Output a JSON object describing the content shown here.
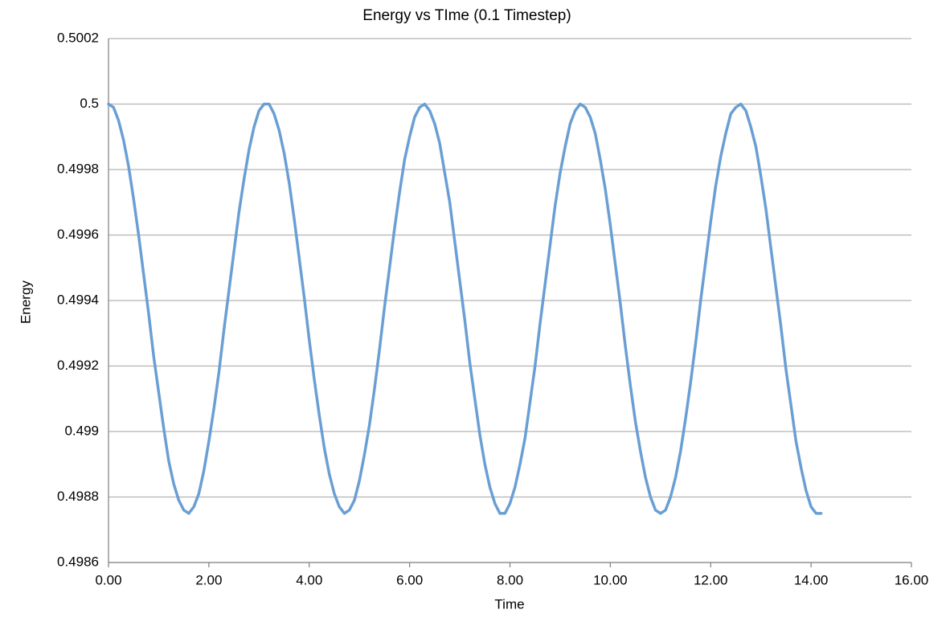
{
  "chart_data": {
    "type": "line",
    "title": "Energy vs TIme (0.1 Timestep)",
    "xlabel": "Time",
    "ylabel": "Energy",
    "x": [
      0,
      0.1,
      0.2,
      0.3,
      0.4,
      0.5,
      0.6,
      0.7,
      0.8,
      0.9,
      1,
      1.1,
      1.2,
      1.3,
      1.4,
      1.5,
      1.6,
      1.7,
      1.8,
      1.9,
      2,
      2.1,
      2.2,
      2.3,
      2.4,
      2.5,
      2.6,
      2.7,
      2.8,
      2.9,
      3,
      3.1,
      3.2,
      3.3,
      3.4,
      3.5,
      3.6,
      3.7,
      3.8,
      3.9,
      4,
      4.1,
      4.2,
      4.3,
      4.4,
      4.5,
      4.6,
      4.7,
      4.8,
      4.9,
      5,
      5.1,
      5.2,
      5.3,
      5.4,
      5.5,
      5.6,
      5.7,
      5.8,
      5.9,
      6,
      6.1,
      6.2,
      6.3,
      6.4,
      6.5,
      6.6,
      6.7,
      6.8,
      6.9,
      7,
      7.1,
      7.2,
      7.3,
      7.4,
      7.5,
      7.6,
      7.7,
      7.8,
      7.9,
      8,
      8.1,
      8.2,
      8.3,
      8.4,
      8.5,
      8.6,
      8.7,
      8.8,
      8.9,
      9,
      9.1,
      9.2,
      9.3,
      9.4,
      9.5,
      9.6,
      9.7,
      9.8,
      9.9,
      10,
      10.1,
      10.2,
      10.3,
      10.4,
      10.5,
      10.6,
      10.7,
      10.8,
      10.9,
      11,
      11.1,
      11.2,
      11.3,
      11.4,
      11.5,
      11.6,
      11.7,
      11.8,
      11.9,
      12,
      12.1,
      12.2,
      12.3,
      12.4,
      12.5,
      12.6,
      12.7,
      12.8,
      12.9,
      13,
      13.1,
      13.2,
      13.3,
      13.4,
      13.5,
      13.6,
      13.7,
      13.8,
      13.9,
      14,
      14.1,
      14.2
    ],
    "series": [
      {
        "name": "Energy",
        "color": "#6a9fd4",
        "values": [
          0.5,
          0.49999,
          0.49995,
          0.49989,
          0.49981,
          0.49971,
          0.4996,
          0.49948,
          0.49936,
          0.49923,
          0.49912,
          0.49901,
          0.49891,
          0.49884,
          0.49879,
          0.49876,
          0.49875,
          0.49877,
          0.49881,
          0.49888,
          0.49897,
          0.49907,
          0.49918,
          0.49931,
          0.49943,
          0.49955,
          0.49967,
          0.49977,
          0.49986,
          0.49993,
          0.49998,
          0.5,
          0.5,
          0.49997,
          0.49992,
          0.49985,
          0.49976,
          0.49965,
          0.49953,
          0.49941,
          0.49928,
          0.49916,
          0.49905,
          0.49895,
          0.49887,
          0.49881,
          0.49877,
          0.49875,
          0.49876,
          0.49879,
          0.49885,
          0.49893,
          0.49902,
          0.49913,
          0.49925,
          0.49938,
          0.4995,
          0.49962,
          0.49973,
          0.49983,
          0.4999,
          0.49996,
          0.49999,
          0.5,
          0.49998,
          0.49994,
          0.49988,
          0.49979,
          0.4997,
          0.49958,
          0.49946,
          0.49934,
          0.49921,
          0.4991,
          0.49899,
          0.4989,
          0.49883,
          0.49878,
          0.49875,
          0.49875,
          0.49878,
          0.49883,
          0.4989,
          0.49898,
          0.49909,
          0.4992,
          0.49933,
          0.49945,
          0.49957,
          0.49969,
          0.49979,
          0.49987,
          0.49994,
          0.49998,
          0.5,
          0.49999,
          0.49996,
          0.49991,
          0.49983,
          0.49974,
          0.49963,
          0.49951,
          0.49939,
          0.49926,
          0.49914,
          0.49903,
          0.49894,
          0.49886,
          0.4988,
          0.49876,
          0.49875,
          0.49876,
          0.4988,
          0.49886,
          0.49894,
          0.49904,
          0.49915,
          0.49927,
          0.4994,
          0.49952,
          0.49964,
          0.49975,
          0.49984,
          0.49991,
          0.49997,
          0.49999,
          0.5,
          0.49998,
          0.49993,
          0.49987,
          0.49978,
          0.49968,
          0.49956,
          0.49944,
          0.49932,
          0.49919,
          0.49908,
          0.49897,
          0.49889,
          0.49882,
          0.49877,
          0.49875,
          0.49875
        ]
      }
    ],
    "xlim": [
      0,
      16
    ],
    "xticks": [
      {
        "value": 0,
        "label": "0.00"
      },
      {
        "value": 2,
        "label": "2.00"
      },
      {
        "value": 4,
        "label": "4.00"
      },
      {
        "value": 6,
        "label": "6.00"
      },
      {
        "value": 8,
        "label": "8.00"
      },
      {
        "value": 10,
        "label": "10.00"
      },
      {
        "value": 12,
        "label": "12.00"
      },
      {
        "value": 14,
        "label": "14.00"
      },
      {
        "value": 16,
        "label": "16.00"
      }
    ],
    "ylim": [
      0.4986,
      0.5002
    ],
    "yticks": [
      0.4986,
      0.4988,
      0.499,
      0.4992,
      0.4994,
      0.4996,
      0.4998,
      0.5,
      0.5002
    ],
    "grid": true
  }
}
